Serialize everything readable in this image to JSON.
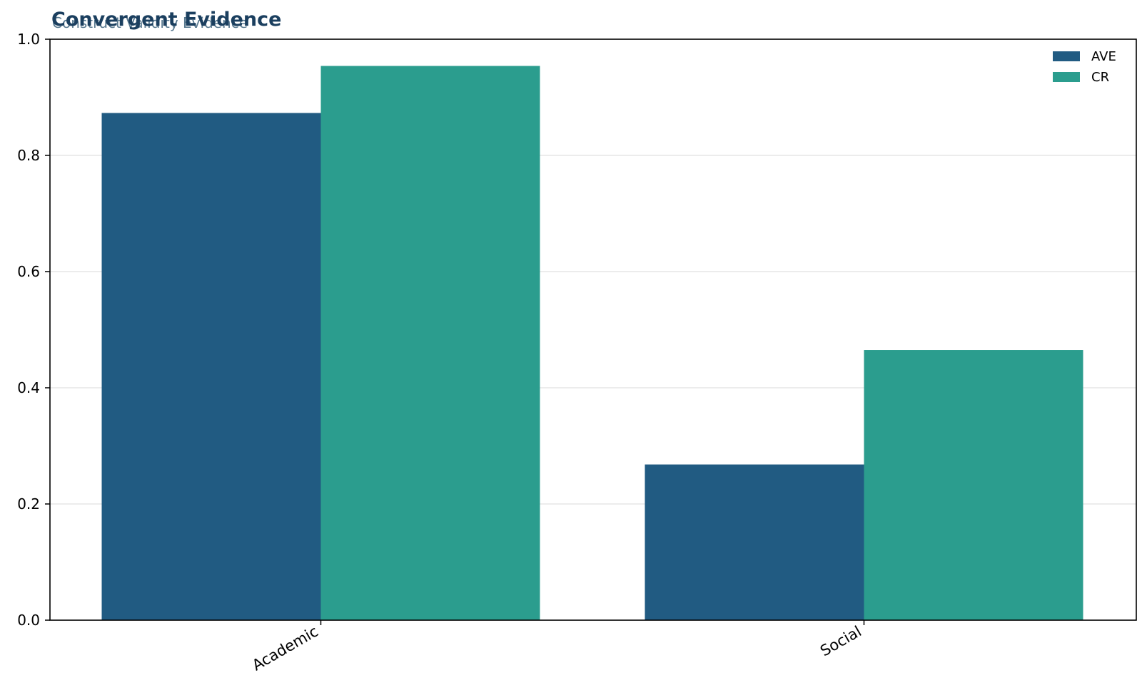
{
  "chart_data": {
    "type": "bar",
    "title": "Convergent Evidence",
    "subtitle": "Construct Validity Evidence",
    "xlabel": "",
    "ylabel": "",
    "categories": [
      "Academic",
      "Social"
    ],
    "series": [
      {
        "name": "AVE",
        "values": [
          0.873,
          0.268
        ],
        "color": "#215b82"
      },
      {
        "name": "CR",
        "values": [
          0.954,
          0.465
        ],
        "color": "#2b9d8e"
      }
    ],
    "ylim": [
      0,
      1.0
    ],
    "yticks": [
      "0.0",
      "0.2",
      "0.4",
      "0.6",
      "0.8",
      "1.0"
    ],
    "grid": "horizontal",
    "legend_position": "top-right"
  }
}
